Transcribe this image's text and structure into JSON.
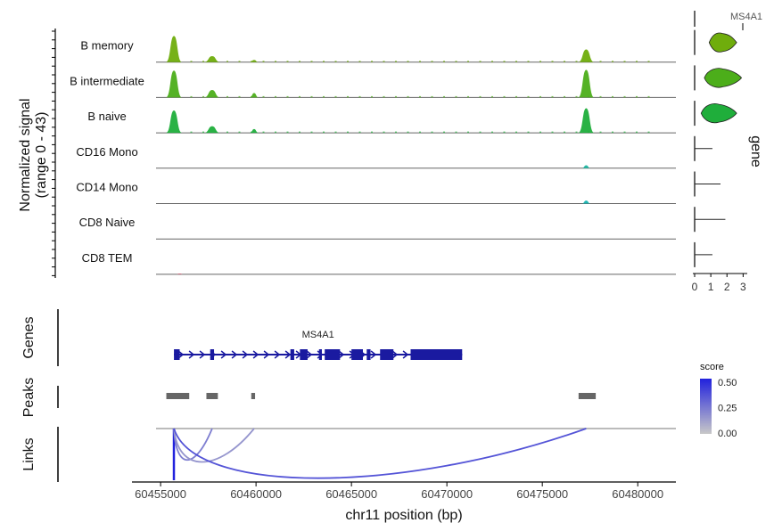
{
  "chart_data": [
    {
      "type": "area",
      "panel": "coverage",
      "ylabel_line1": "Normalized signal",
      "ylabel_line2": "(range 0 - 43)",
      "y_range": [
        0,
        43
      ],
      "tracks": [
        {
          "name": "B memory",
          "color": "#6fad0c",
          "peaks": [
            [
              60455700,
              35
            ],
            [
              60457700,
              8
            ],
            [
              60459900,
              3
            ],
            [
              60477300,
              17
            ]
          ]
        },
        {
          "name": "B intermediate",
          "color": "#4cae1a",
          "peaks": [
            [
              60455700,
              36
            ],
            [
              60457700,
              10
            ],
            [
              60459900,
              6
            ],
            [
              60477300,
              37
            ]
          ]
        },
        {
          "name": "B naive",
          "color": "#1fae3b",
          "peaks": [
            [
              60455700,
              30
            ],
            [
              60457700,
              9
            ],
            [
              60459900,
              5
            ],
            [
              60477300,
              33
            ]
          ]
        },
        {
          "name": "CD16 Mono",
          "color": "#1bb5a0",
          "peaks": [
            [
              60477300,
              4
            ]
          ]
        },
        {
          "name": "CD14 Mono",
          "color": "#16b3b0",
          "peaks": [
            [
              60477300,
              4
            ]
          ]
        },
        {
          "name": "CD8 Naive",
          "color": "#2aa0b8",
          "peaks": []
        },
        {
          "name": "CD8 TEM",
          "color": "#d0506a",
          "peaks": [
            [
              60456000,
              1
            ]
          ]
        }
      ]
    },
    {
      "type": "violin",
      "panel": "expression",
      "title": "MS4A1",
      "side_label": "gene",
      "x_ticks": [
        "0",
        "1",
        "2",
        "3"
      ],
      "x_range": [
        0,
        3.2
      ],
      "series": [
        {
          "name": "B memory",
          "color": "#6fad0c",
          "range": [
            0.9,
            2.6
          ]
        },
        {
          "name": "B intermediate",
          "color": "#4cae1a",
          "range": [
            0.6,
            2.9
          ]
        },
        {
          "name": "B naive",
          "color": "#1fae3b",
          "range": [
            0.4,
            2.6
          ]
        },
        {
          "name": "CD16 Mono",
          "color": "#1bb5a0",
          "range": [
            0,
            1.1
          ]
        },
        {
          "name": "CD14 Mono",
          "color": "#16b3b0",
          "range": [
            0,
            1.6
          ]
        },
        {
          "name": "CD8 Naive",
          "color": "#2aa0b8",
          "range": [
            0,
            1.9
          ]
        },
        {
          "name": "CD8 TEM",
          "color": "#d0506a",
          "range": [
            0,
            1.1
          ]
        }
      ]
    },
    {
      "type": "gene_track",
      "panel": "genes",
      "label": "Genes",
      "gene_name": "MS4A1",
      "gene_start": 60455700,
      "gene_end": 60470800,
      "exons": [
        [
          60455700,
          60456000
        ],
        [
          60457600,
          60457800
        ],
        [
          60461800,
          60462000
        ],
        [
          60462300,
          60462700
        ],
        [
          60463300,
          60463450
        ],
        [
          60463600,
          60464400
        ],
        [
          60465000,
          60465600
        ],
        [
          60465800,
          60466000
        ],
        [
          60466500,
          60467200
        ],
        [
          60468100,
          60470800
        ]
      ]
    },
    {
      "type": "peak_track",
      "panel": "peaks",
      "label": "Peaks",
      "peaks": [
        [
          60455300,
          60456500
        ],
        [
          60457400,
          60458000
        ],
        [
          60459750,
          60459950
        ],
        [
          60476900,
          60477800
        ]
      ]
    },
    {
      "type": "arc_links",
      "panel": "links",
      "label": "Links",
      "links": [
        {
          "start": 60455650,
          "end": 60455750,
          "score": 0.5
        },
        {
          "start": 60455700,
          "end": 60457700,
          "score": 0.22
        },
        {
          "start": 60455700,
          "end": 60459900,
          "score": 0.15
        },
        {
          "start": 60455700,
          "end": 60477300,
          "score": 0.35
        }
      ],
      "legend": {
        "title": "score",
        "ticks": [
          "0.50",
          "0.25",
          "0.00"
        ],
        "color_low": "#c8c8c8",
        "color_high": "#2222dd"
      }
    }
  ],
  "x_axis": {
    "label": "chr11 position (bp)",
    "range": [
      60453500,
      60482000
    ],
    "ticks": [
      "60455000",
      "60460000",
      "60465000",
      "60470000",
      "60475000",
      "60480000"
    ]
  }
}
